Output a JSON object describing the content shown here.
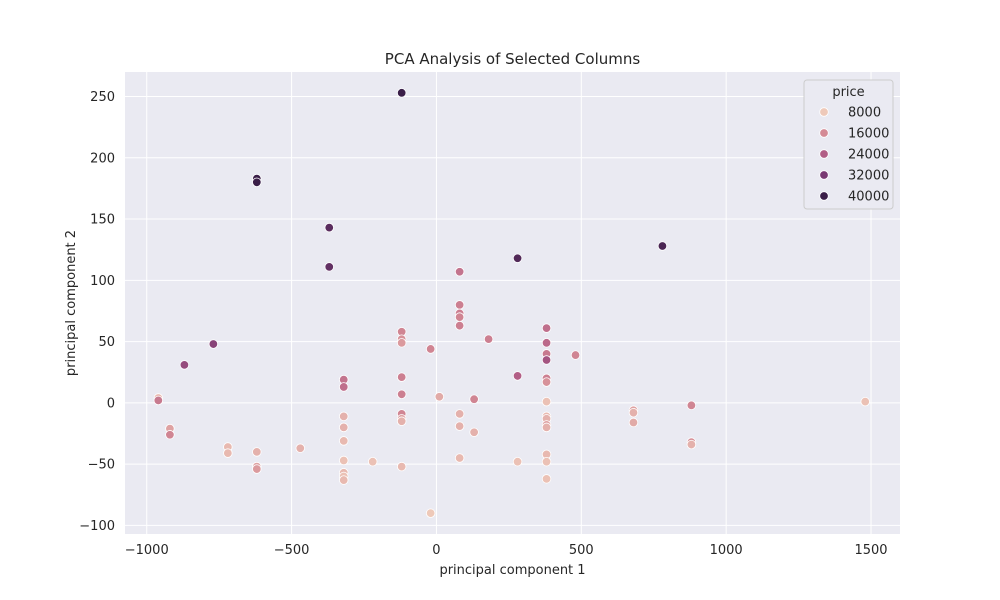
{
  "chart_data": {
    "type": "scatter",
    "title": "PCA Analysis of Selected Columns",
    "xlabel": "principal component 1",
    "ylabel": "principal component 2",
    "xlim": [
      -1075,
      1600
    ],
    "ylim": [
      -107,
      270
    ],
    "xticks": [
      -1000,
      -500,
      0,
      500,
      1000,
      1500
    ],
    "yticks": [
      -100,
      -50,
      0,
      50,
      100,
      150,
      200,
      250
    ],
    "grid": true,
    "legend": {
      "title": "price",
      "position": "top-right",
      "entries": [
        {
          "label": "8000",
          "value": 8000
        },
        {
          "label": "16000",
          "value": 16000
        },
        {
          "label": "24000",
          "value": 24000
        },
        {
          "label": "32000",
          "value": 32000
        },
        {
          "label": "40000",
          "value": 40000
        }
      ]
    },
    "colors": {
      "low": "#edc6b8",
      "high": "#2e1a3d",
      "stops": [
        "#eec9b9",
        "#d48a95",
        "#b25e86",
        "#7a3a73",
        "#3a1e48"
      ]
    },
    "points": [
      {
        "x": -120,
        "y": 253,
        "price": 42000
      },
      {
        "x": -620,
        "y": 183,
        "price": 41000
      },
      {
        "x": -620,
        "y": 180,
        "price": 40000
      },
      {
        "x": -370,
        "y": 143,
        "price": 36000
      },
      {
        "x": -370,
        "y": 111,
        "price": 35000
      },
      {
        "x": 280,
        "y": 118,
        "price": 37000
      },
      {
        "x": 780,
        "y": 128,
        "price": 38000
      },
      {
        "x": -770,
        "y": 48,
        "price": 30000
      },
      {
        "x": -870,
        "y": 31,
        "price": 28000
      },
      {
        "x": 80,
        "y": 107,
        "price": 20000
      },
      {
        "x": 80,
        "y": 80,
        "price": 18000
      },
      {
        "x": 80,
        "y": 73,
        "price": 18000
      },
      {
        "x": 80,
        "y": 70,
        "price": 17000
      },
      {
        "x": 80,
        "y": 63,
        "price": 18000
      },
      {
        "x": -120,
        "y": 58,
        "price": 17000
      },
      {
        "x": -120,
        "y": 52,
        "price": 15000
      },
      {
        "x": -120,
        "y": 49,
        "price": 14000
      },
      {
        "x": 180,
        "y": 52,
        "price": 18000
      },
      {
        "x": -20,
        "y": 44,
        "price": 17000
      },
      {
        "x": 380,
        "y": 61,
        "price": 21000
      },
      {
        "x": 380,
        "y": 49,
        "price": 22000
      },
      {
        "x": 380,
        "y": 40,
        "price": 19000
      },
      {
        "x": 380,
        "y": 35,
        "price": 26000
      },
      {
        "x": 480,
        "y": 39,
        "price": 17000
      },
      {
        "x": 280,
        "y": 22,
        "price": 24000
      },
      {
        "x": 380,
        "y": 20,
        "price": 18000
      },
      {
        "x": 380,
        "y": 17,
        "price": 15000
      },
      {
        "x": -320,
        "y": 19,
        "price": 20000
      },
      {
        "x": -320,
        "y": 13,
        "price": 21000
      },
      {
        "x": -120,
        "y": 21,
        "price": 18000
      },
      {
        "x": -120,
        "y": 7,
        "price": 18000
      },
      {
        "x": -960,
        "y": 4,
        "price": 10000
      },
      {
        "x": -960,
        "y": 2,
        "price": 19000
      },
      {
        "x": 10,
        "y": 5,
        "price": 12000
      },
      {
        "x": 130,
        "y": 3,
        "price": 17000
      },
      {
        "x": 380,
        "y": 1,
        "price": 9000
      },
      {
        "x": 880,
        "y": -2,
        "price": 17000
      },
      {
        "x": 1480,
        "y": 1,
        "price": 9000
      },
      {
        "x": 680,
        "y": -6,
        "price": 13000
      },
      {
        "x": 680,
        "y": -8,
        "price": 11000
      },
      {
        "x": -120,
        "y": -9,
        "price": 17000
      },
      {
        "x": 80,
        "y": -9,
        "price": 11000
      },
      {
        "x": -320,
        "y": -11,
        "price": 11000
      },
      {
        "x": -120,
        "y": -13,
        "price": 13000
      },
      {
        "x": -120,
        "y": -15,
        "price": 11000
      },
      {
        "x": 380,
        "y": -11,
        "price": 10000
      },
      {
        "x": 380,
        "y": -13,
        "price": 11000
      },
      {
        "x": 380,
        "y": -18,
        "price": 13000
      },
      {
        "x": 380,
        "y": -20,
        "price": 11000
      },
      {
        "x": 680,
        "y": -16,
        "price": 12000
      },
      {
        "x": -920,
        "y": -21,
        "price": 13000
      },
      {
        "x": -920,
        "y": -26,
        "price": 17000
      },
      {
        "x": -320,
        "y": -20,
        "price": 11000
      },
      {
        "x": 80,
        "y": -19,
        "price": 11000
      },
      {
        "x": 130,
        "y": -24,
        "price": 11000
      },
      {
        "x": -320,
        "y": -31,
        "price": 10000
      },
      {
        "x": 880,
        "y": -32,
        "price": 15000
      },
      {
        "x": 880,
        "y": -34,
        "price": 11000
      },
      {
        "x": -720,
        "y": -36,
        "price": 10000
      },
      {
        "x": -720,
        "y": -41,
        "price": 10000
      },
      {
        "x": -470,
        "y": -37,
        "price": 11000
      },
      {
        "x": -620,
        "y": -40,
        "price": 11000
      },
      {
        "x": 380,
        "y": -42,
        "price": 10000
      },
      {
        "x": 80,
        "y": -45,
        "price": 10000
      },
      {
        "x": -320,
        "y": -47,
        "price": 9000
      },
      {
        "x": -220,
        "y": -48,
        "price": 9000
      },
      {
        "x": 280,
        "y": -48,
        "price": 9000
      },
      {
        "x": 380,
        "y": -48,
        "price": 9000
      },
      {
        "x": -620,
        "y": -52,
        "price": 13000
      },
      {
        "x": -620,
        "y": -54,
        "price": 14000
      },
      {
        "x": -120,
        "y": -52,
        "price": 10000
      },
      {
        "x": -320,
        "y": -57,
        "price": 10000
      },
      {
        "x": -320,
        "y": -60,
        "price": 9000
      },
      {
        "x": -320,
        "y": -63,
        "price": 10000
      },
      {
        "x": 380,
        "y": -62,
        "price": 9000
      },
      {
        "x": -20,
        "y": -90,
        "price": 8000
      }
    ]
  }
}
